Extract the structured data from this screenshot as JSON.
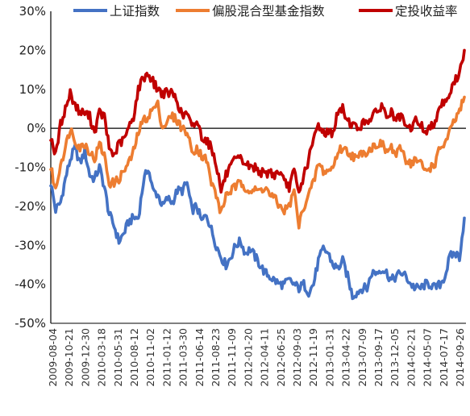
{
  "chart_data": {
    "type": "line",
    "title": "",
    "xlabel": "",
    "ylabel": "",
    "ylim": [
      -50,
      30
    ],
    "y_ticks": [
      30,
      20,
      10,
      0,
      -10,
      -20,
      -30,
      -40,
      -50
    ],
    "y_tick_labels": [
      "30%",
      "20%",
      "10%",
      "0%",
      "-10%",
      "-20%",
      "-30%",
      "-40%",
      "-50%"
    ],
    "x_tick_labels": [
      "2009-08-04",
      "2009-10-21",
      "2009-12-30",
      "2010-03-18",
      "2010-05-31",
      "2010-08-12",
      "2010-11-02",
      "2011-01-12",
      "2011-03-30",
      "2011-06-14",
      "2011-08-23",
      "2011-11-09",
      "2012-01-20",
      "2012-04-11",
      "2012-06-25",
      "2012-09-03",
      "2012-11-19",
      "2013-01-31",
      "2013-04-22",
      "2013-07-09",
      "2013-09-17",
      "2013-12-05",
      "2014-02-21",
      "2014-05-07",
      "2014-07-17",
      "2014-09-26"
    ],
    "grid": false,
    "legend_position": "top",
    "series": [
      {
        "name": "上证指数",
        "color": "#4472C4",
        "values": [
          -14,
          -21,
          -19,
          -13,
          -8,
          -5,
          -9,
          -6,
          -12,
          -13,
          -10,
          -15,
          -22,
          -25,
          -29,
          -27,
          -24,
          -23,
          -23,
          -14,
          -10,
          -16,
          -17,
          -20,
          -18,
          -19,
          -16,
          -16,
          -14,
          -21,
          -20,
          -24,
          -22,
          -26,
          -30,
          -33,
          -35,
          -33,
          -30,
          -29,
          -32,
          -31,
          -33,
          -35,
          -37,
          -38,
          -39,
          -40,
          -40,
          -39,
          -40,
          -41,
          -40,
          -42,
          -40,
          -34,
          -31,
          -32,
          -35,
          -36,
          -34,
          -38,
          -43,
          -42,
          -41,
          -41,
          -37,
          -37,
          -36,
          -37,
          -39,
          -38,
          -37,
          -38,
          -40,
          -41,
          -41,
          -40,
          -40,
          -41,
          -40,
          -38,
          -33,
          -32,
          -33,
          -23
        ]
      },
      {
        "name": "偏股混合型基金指数",
        "color": "#ED7D31",
        "values": [
          -10,
          -16,
          -9,
          -5,
          0,
          -3,
          -5,
          -4,
          -6,
          -8,
          -4,
          -7,
          -14,
          -14,
          -13,
          -11,
          -9,
          -6,
          -1,
          2,
          3,
          5,
          6,
          0,
          2,
          3,
          2,
          0,
          -1,
          -6,
          -5,
          -7,
          -8,
          -14,
          -17,
          -22,
          -17,
          -16,
          -15,
          -14,
          -15,
          -16,
          -16,
          -16,
          -15,
          -17,
          -18,
          -20,
          -21,
          -20,
          -16,
          -25,
          -20,
          -17,
          -14,
          -9,
          -11,
          -11,
          -10,
          -6,
          -5,
          -6,
          -7,
          -8,
          -6,
          -6,
          -5,
          -4,
          -4,
          -6,
          -5,
          -7,
          -5,
          -8,
          -9,
          -8,
          -9,
          -11,
          -10,
          -9,
          -5,
          -4,
          -1,
          2,
          4,
          8
        ]
      },
      {
        "name": "定投收益率",
        "color": "#C00000",
        "values": [
          -2,
          -7,
          1,
          5,
          9,
          6,
          4,
          4,
          3,
          -1,
          4,
          3,
          -5,
          -7,
          -4,
          -3,
          0,
          3,
          10,
          13,
          14,
          12,
          10,
          9,
          9,
          9,
          7,
          3,
          4,
          0,
          2,
          -2,
          -3,
          -5,
          -9,
          -16,
          -12,
          -10,
          -8,
          -8,
          -9,
          -10,
          -10,
          -11,
          -12,
          -11,
          -12,
          -11,
          -14,
          -15,
          -11,
          -17,
          -12,
          -8,
          -3,
          1,
          -1,
          -1,
          -1,
          4,
          5,
          2,
          1,
          0,
          1,
          2,
          3,
          4,
          6,
          3,
          4,
          2,
          3,
          0,
          0,
          2,
          1,
          -1,
          0,
          2,
          6,
          7,
          9,
          12,
          14,
          20
        ]
      }
    ]
  }
}
